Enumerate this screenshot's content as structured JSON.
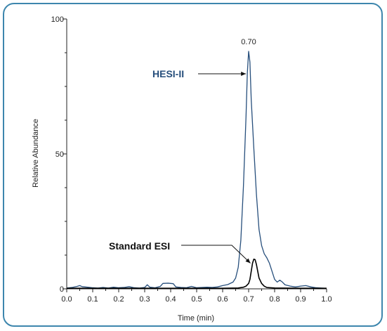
{
  "chart_data": {
    "type": "line",
    "title": "",
    "xlabel": "Time (min)",
    "ylabel": "Relative Abundance",
    "xlim": [
      0.0,
      1.0
    ],
    "ylim": [
      0,
      100
    ],
    "x_ticks": [
      "0.0",
      "0.1",
      "0.2",
      "0.3",
      "0.4",
      "0.5",
      "0.6",
      "0.7",
      "0.8",
      "0.9",
      "1.0"
    ],
    "y_ticks": [
      "0",
      "50",
      "100"
    ],
    "grid": false,
    "colors": {
      "hesi": "#274f7c",
      "esi": "#000000",
      "frame": "#3d86ad"
    },
    "series": [
      {
        "name": "HESI-II",
        "points": [
          [
            0.0,
            0.3
          ],
          [
            0.02,
            0.5
          ],
          [
            0.04,
            0.9
          ],
          [
            0.05,
            1.2
          ],
          [
            0.06,
            0.8
          ],
          [
            0.08,
            0.6
          ],
          [
            0.1,
            0.4
          ],
          [
            0.12,
            0.3
          ],
          [
            0.14,
            0.5
          ],
          [
            0.16,
            0.3
          ],
          [
            0.18,
            0.6
          ],
          [
            0.2,
            0.4
          ],
          [
            0.22,
            0.5
          ],
          [
            0.24,
            0.8
          ],
          [
            0.26,
            0.4
          ],
          [
            0.28,
            0.3
          ],
          [
            0.3,
            0.5
          ],
          [
            0.31,
            1.5
          ],
          [
            0.32,
            0.6
          ],
          [
            0.34,
            0.4
          ],
          [
            0.36,
            0.9
          ],
          [
            0.37,
            2.0
          ],
          [
            0.39,
            2.1
          ],
          [
            0.41,
            1.9
          ],
          [
            0.42,
            0.7
          ],
          [
            0.44,
            0.5
          ],
          [
            0.46,
            0.4
          ],
          [
            0.48,
            0.9
          ],
          [
            0.5,
            0.4
          ],
          [
            0.52,
            0.5
          ],
          [
            0.54,
            0.6
          ],
          [
            0.56,
            0.5
          ],
          [
            0.58,
            0.7
          ],
          [
            0.6,
            1.2
          ],
          [
            0.62,
            1.6
          ],
          [
            0.64,
            2.5
          ],
          [
            0.65,
            4.0
          ],
          [
            0.66,
            8.0
          ],
          [
            0.67,
            18.0
          ],
          [
            0.68,
            38.0
          ],
          [
            0.69,
            64.0
          ],
          [
            0.695,
            80.0
          ],
          [
            0.7,
            88.0
          ],
          [
            0.705,
            84.0
          ],
          [
            0.71,
            70.0
          ],
          [
            0.72,
            52.0
          ],
          [
            0.73,
            35.0
          ],
          [
            0.74,
            22.0
          ],
          [
            0.75,
            16.0
          ],
          [
            0.76,
            13.0
          ],
          [
            0.77,
            11.5
          ],
          [
            0.78,
            9.5
          ],
          [
            0.79,
            6.5
          ],
          [
            0.8,
            3.5
          ],
          [
            0.81,
            2.5
          ],
          [
            0.82,
            3.2
          ],
          [
            0.83,
            2.5
          ],
          [
            0.84,
            1.5
          ],
          [
            0.86,
            1.0
          ],
          [
            0.88,
            0.7
          ],
          [
            0.9,
            1.0
          ],
          [
            0.92,
            1.2
          ],
          [
            0.94,
            0.7
          ],
          [
            0.96,
            0.4
          ],
          [
            0.98,
            0.3
          ],
          [
            1.0,
            0.2
          ]
        ]
      },
      {
        "name": "Standard ESI",
        "points": [
          [
            0.0,
            0.2
          ],
          [
            0.1,
            0.2
          ],
          [
            0.2,
            0.2
          ],
          [
            0.3,
            0.2
          ],
          [
            0.4,
            0.2
          ],
          [
            0.5,
            0.2
          ],
          [
            0.6,
            0.2
          ],
          [
            0.66,
            0.3
          ],
          [
            0.68,
            0.6
          ],
          [
            0.69,
            1.0
          ],
          [
            0.7,
            2.0
          ],
          [
            0.705,
            3.5
          ],
          [
            0.71,
            6.5
          ],
          [
            0.715,
            9.5
          ],
          [
            0.72,
            11.0
          ],
          [
            0.725,
            10.8
          ],
          [
            0.73,
            9.0
          ],
          [
            0.735,
            6.5
          ],
          [
            0.74,
            4.0
          ],
          [
            0.75,
            2.0
          ],
          [
            0.76,
            1.0
          ],
          [
            0.77,
            0.5
          ],
          [
            0.8,
            0.3
          ],
          [
            0.9,
            0.2
          ],
          [
            1.0,
            0.2
          ]
        ]
      }
    ],
    "annotations": [
      {
        "text": "0.70",
        "x": 0.7,
        "y": 88.0,
        "kind": "peak-label"
      },
      {
        "text": "HESI-II",
        "target_series": "HESI-II",
        "target_x": 0.695,
        "target_y": 78.0
      },
      {
        "text": "Standard ESI",
        "target_series": "Standard ESI",
        "target_x": 0.715,
        "target_y": 9.5
      }
    ]
  }
}
